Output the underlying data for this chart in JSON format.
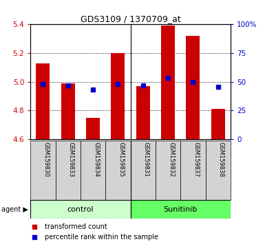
{
  "title": "GDS3109 / 1370709_at",
  "samples": [
    "GSM159830",
    "GSM159833",
    "GSM159834",
    "GSM159835",
    "GSM159831",
    "GSM159832",
    "GSM159837",
    "GSM159838"
  ],
  "groups": [
    "control",
    "control",
    "control",
    "control",
    "Sunitinib",
    "Sunitinib",
    "Sunitinib",
    "Sunitinib"
  ],
  "bar_values": [
    5.13,
    4.99,
    4.75,
    5.2,
    4.97,
    5.39,
    5.32,
    4.81
  ],
  "percentile_values": [
    4.985,
    4.975,
    4.945,
    4.985,
    4.975,
    5.025,
    5.0,
    4.965
  ],
  "ymin": 4.6,
  "ymax": 5.4,
  "bar_color": "#cc0000",
  "marker_color": "#0000cc",
  "control_color": "#ccffcc",
  "sunitinib_color": "#66ff66",
  "sample_bg_color": "#d3d3d3",
  "grid_color": "#000000",
  "left_ylabel_color": "#cc0000",
  "right_ylabel_color": "#0000cc",
  "yticks": [
    4.6,
    4.8,
    5.0,
    5.2,
    5.4
  ],
  "grid_yvals": [
    4.8,
    5.0,
    5.2
  ],
  "right_yticks": [
    0,
    25,
    50,
    75,
    100
  ],
  "right_yticklabels": [
    "0",
    "25",
    "50",
    "75",
    "100%"
  ],
  "legend_items": [
    "transformed count",
    "percentile rank within the sample"
  ],
  "agent_label": "agent",
  "control_label": "control",
  "sunitinib_label": "Sunitinib"
}
